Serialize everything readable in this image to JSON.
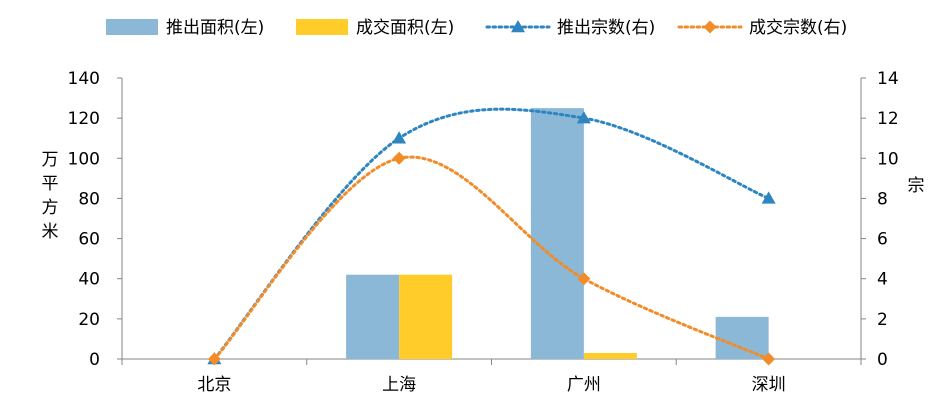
{
  "chart_data": {
    "type": "bar",
    "categories": [
      "北京",
      "上海",
      "广州",
      "深圳"
    ],
    "series": [
      {
        "name": "推出面积(左)",
        "kind": "bar",
        "axis": "left",
        "color": "#8BB8D6",
        "values": [
          0,
          42,
          125,
          21
        ]
      },
      {
        "name": "成交面积(左)",
        "kind": "bar",
        "axis": "left",
        "color": "#FFCC29",
        "values": [
          0,
          42,
          3,
          0
        ]
      },
      {
        "name": "推出宗数(右)",
        "kind": "line",
        "axis": "right",
        "color": "#2E86C1",
        "marker": "triangle",
        "values": [
          0,
          11,
          12,
          8
        ]
      },
      {
        "name": "成交宗数(右)",
        "kind": "line",
        "axis": "right",
        "color": "#F28C28",
        "marker": "diamond",
        "values": [
          0,
          10,
          4,
          0
        ]
      }
    ],
    "ylabel_left": "万平方米",
    "ylabel_right": "宗",
    "ylim_left": [
      0,
      140
    ],
    "ylim_right": [
      0,
      14
    ],
    "yticks_left": [
      "0",
      "20",
      "40",
      "60",
      "80",
      "100",
      "120",
      "140"
    ],
    "yticks_right": [
      "0",
      "2",
      "4",
      "6",
      "8",
      "10",
      "12",
      "14"
    ],
    "grid": false,
    "legend_position": "top"
  }
}
